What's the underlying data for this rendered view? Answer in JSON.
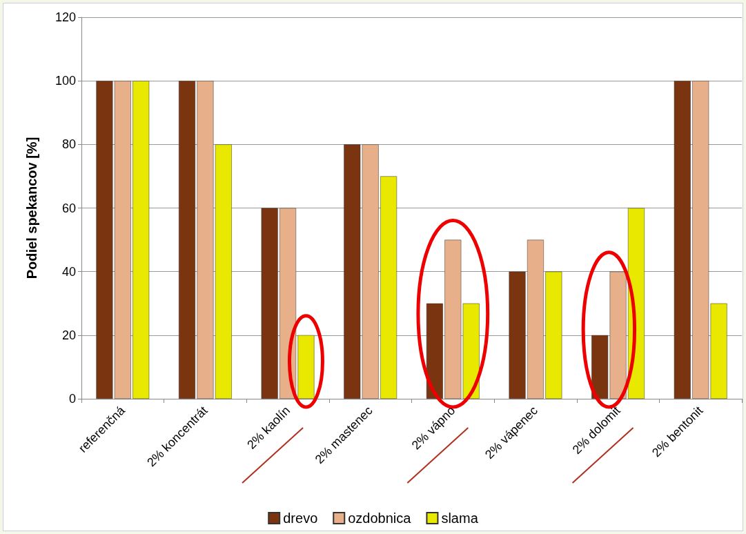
{
  "chart_data": {
    "type": "bar",
    "ylabel": "Podiel spekancov [%]",
    "categories": [
      "referenčná",
      "2% koncentrát",
      "2% kaolín",
      "2% mastenec",
      "2% vápno",
      "2% vápenec",
      "2% dolomit",
      "2% bentonit"
    ],
    "series": [
      {
        "name": "drevo",
        "color": "#7a3510",
        "values": [
          100,
          100,
          60,
          80,
          30,
          40,
          20,
          100
        ]
      },
      {
        "name": "ozdobnica",
        "color": "#e8b08a",
        "values": [
          100,
          100,
          60,
          80,
          50,
          50,
          40,
          100
        ]
      },
      {
        "name": "slama",
        "color": "#e8e800",
        "values": [
          100,
          80,
          20,
          70,
          30,
          40,
          60,
          30
        ]
      }
    ],
    "ylim": [
      0,
      120
    ],
    "yticks": [
      0,
      20,
      40,
      60,
      80,
      100,
      120
    ],
    "grid": "y",
    "legend": "bottom"
  }
}
